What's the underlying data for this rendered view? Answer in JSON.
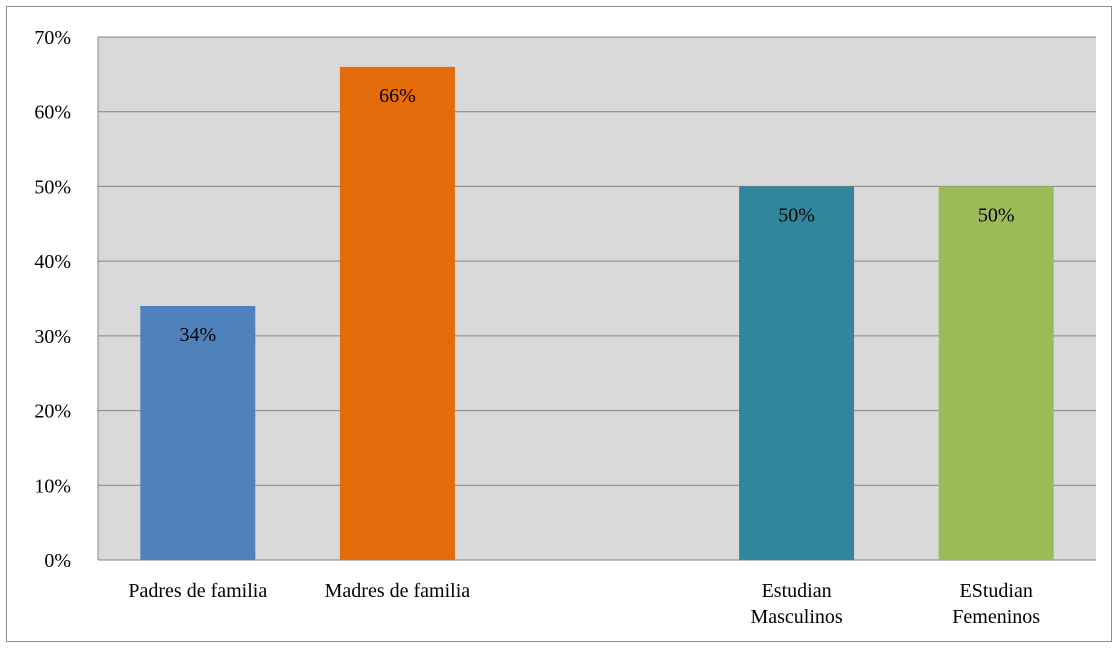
{
  "chart_data": {
    "type": "bar",
    "categories": [
      [
        "Padres de familia"
      ],
      [
        "Madres de familia"
      ],
      [],
      [
        "Estudian",
        "Masculinos"
      ],
      [
        "EStudian",
        "Femeninos"
      ]
    ],
    "values": [
      34,
      66,
      null,
      50,
      50
    ],
    "data_labels": [
      "34%",
      "66%",
      "",
      "50%",
      "50%"
    ],
    "bar_colors": [
      "#4f81bd",
      "#e46c0a",
      "#ffffff",
      "#31859c",
      "#9bbb59"
    ],
    "ylim": [
      0,
      70
    ],
    "ytick_labels": [
      "0%",
      "10%",
      "20%",
      "30%",
      "40%",
      "50%",
      "60%",
      "70%"
    ],
    "grid": true,
    "plot_background": "#d9d9d9",
    "legend": "none"
  }
}
